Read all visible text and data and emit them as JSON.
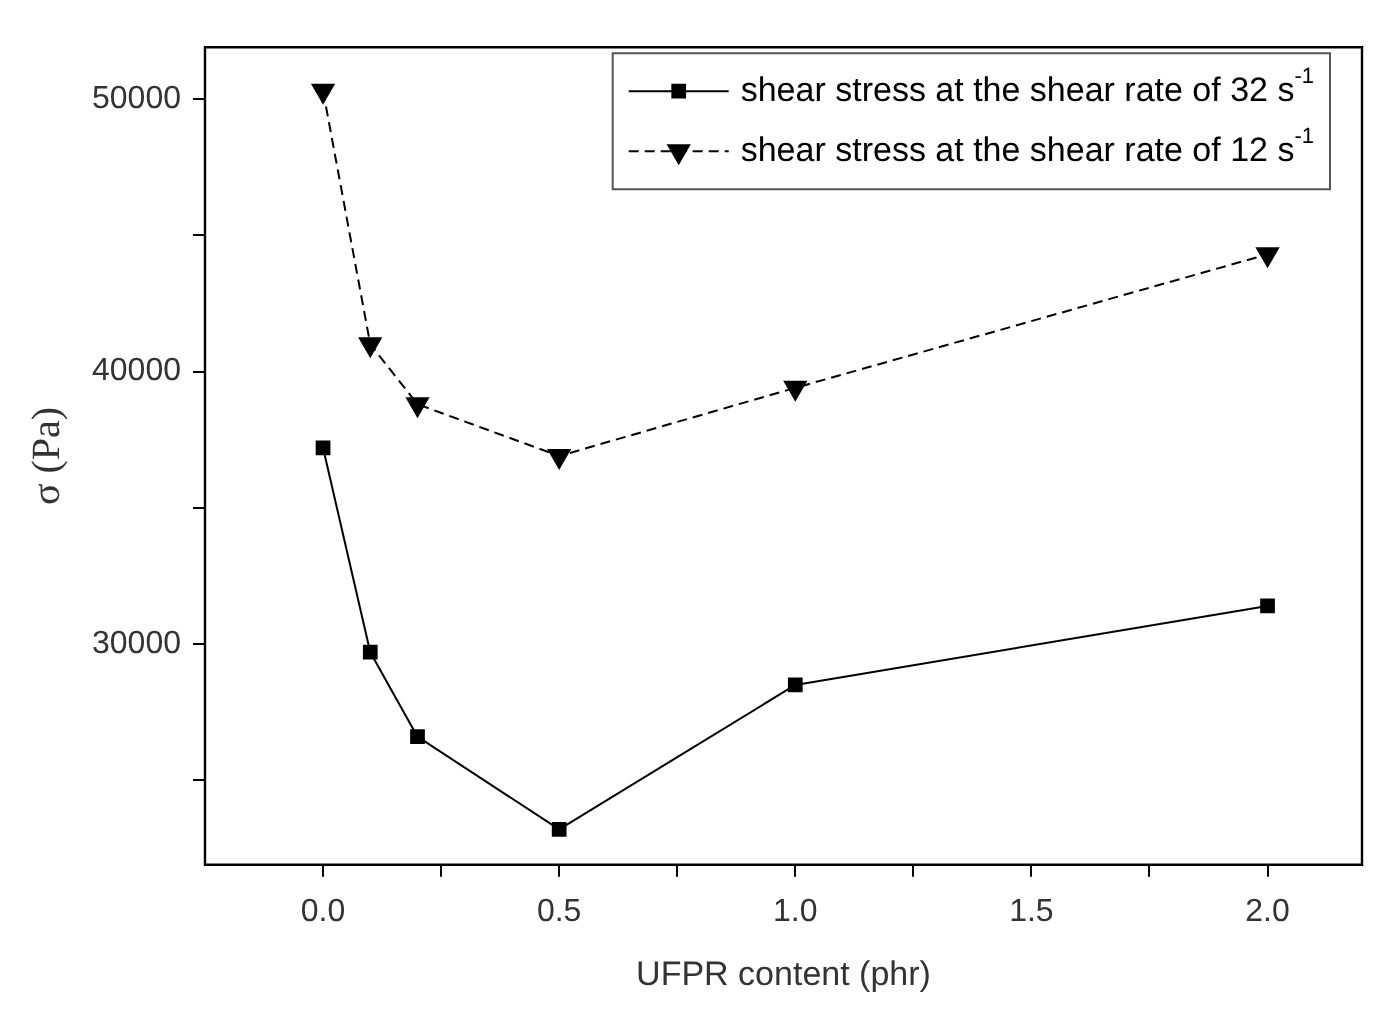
{
  "chart_data": {
    "type": "line",
    "xlabel": "UFPR content (phr)",
    "ylabel": "σ (Pa)",
    "xlim": [
      -0.25,
      2.2
    ],
    "xticks": [
      {
        "value": 0,
        "label": "0.0"
      },
      {
        "value": 0.25,
        "label": null
      },
      {
        "value": 0.5,
        "label": "0.5"
      },
      {
        "value": 0.75,
        "label": null
      },
      {
        "value": 1,
        "label": "1.0"
      },
      {
        "value": 1.25,
        "label": null
      },
      {
        "value": 1.5,
        "label": "1.5"
      },
      {
        "value": 1.75,
        "label": null
      },
      {
        "value": 2,
        "label": "2.0"
      }
    ],
    "ylim": [
      21900,
      51900
    ],
    "yticks": [
      {
        "value": 25000,
        "label": null
      },
      30000,
      {
        "value": 35000,
        "label": null
      },
      40000,
      {
        "value": 45000,
        "label": null
      },
      50000
    ],
    "x": [
      0,
      0.1,
      0.2,
      0.5,
      1,
      2
    ],
    "series": [
      {
        "name": "shear stress at the shear rate of 32 s$^{-1}$",
        "color": "#000000",
        "marker": "square",
        "line_style": "solid",
        "values": [
          37200,
          29700,
          26600,
          23200,
          28500,
          31400
        ]
      },
      {
        "name": "shear stress at the shear rate of 12 s$^{-1}$",
        "color": "#000000",
        "marker": "triangle",
        "line_style": "dashed",
        "values": [
          50300,
          41000,
          38800,
          36900,
          39400,
          44300
        ]
      }
    ],
    "grid": false,
    "legend": "top right"
  }
}
